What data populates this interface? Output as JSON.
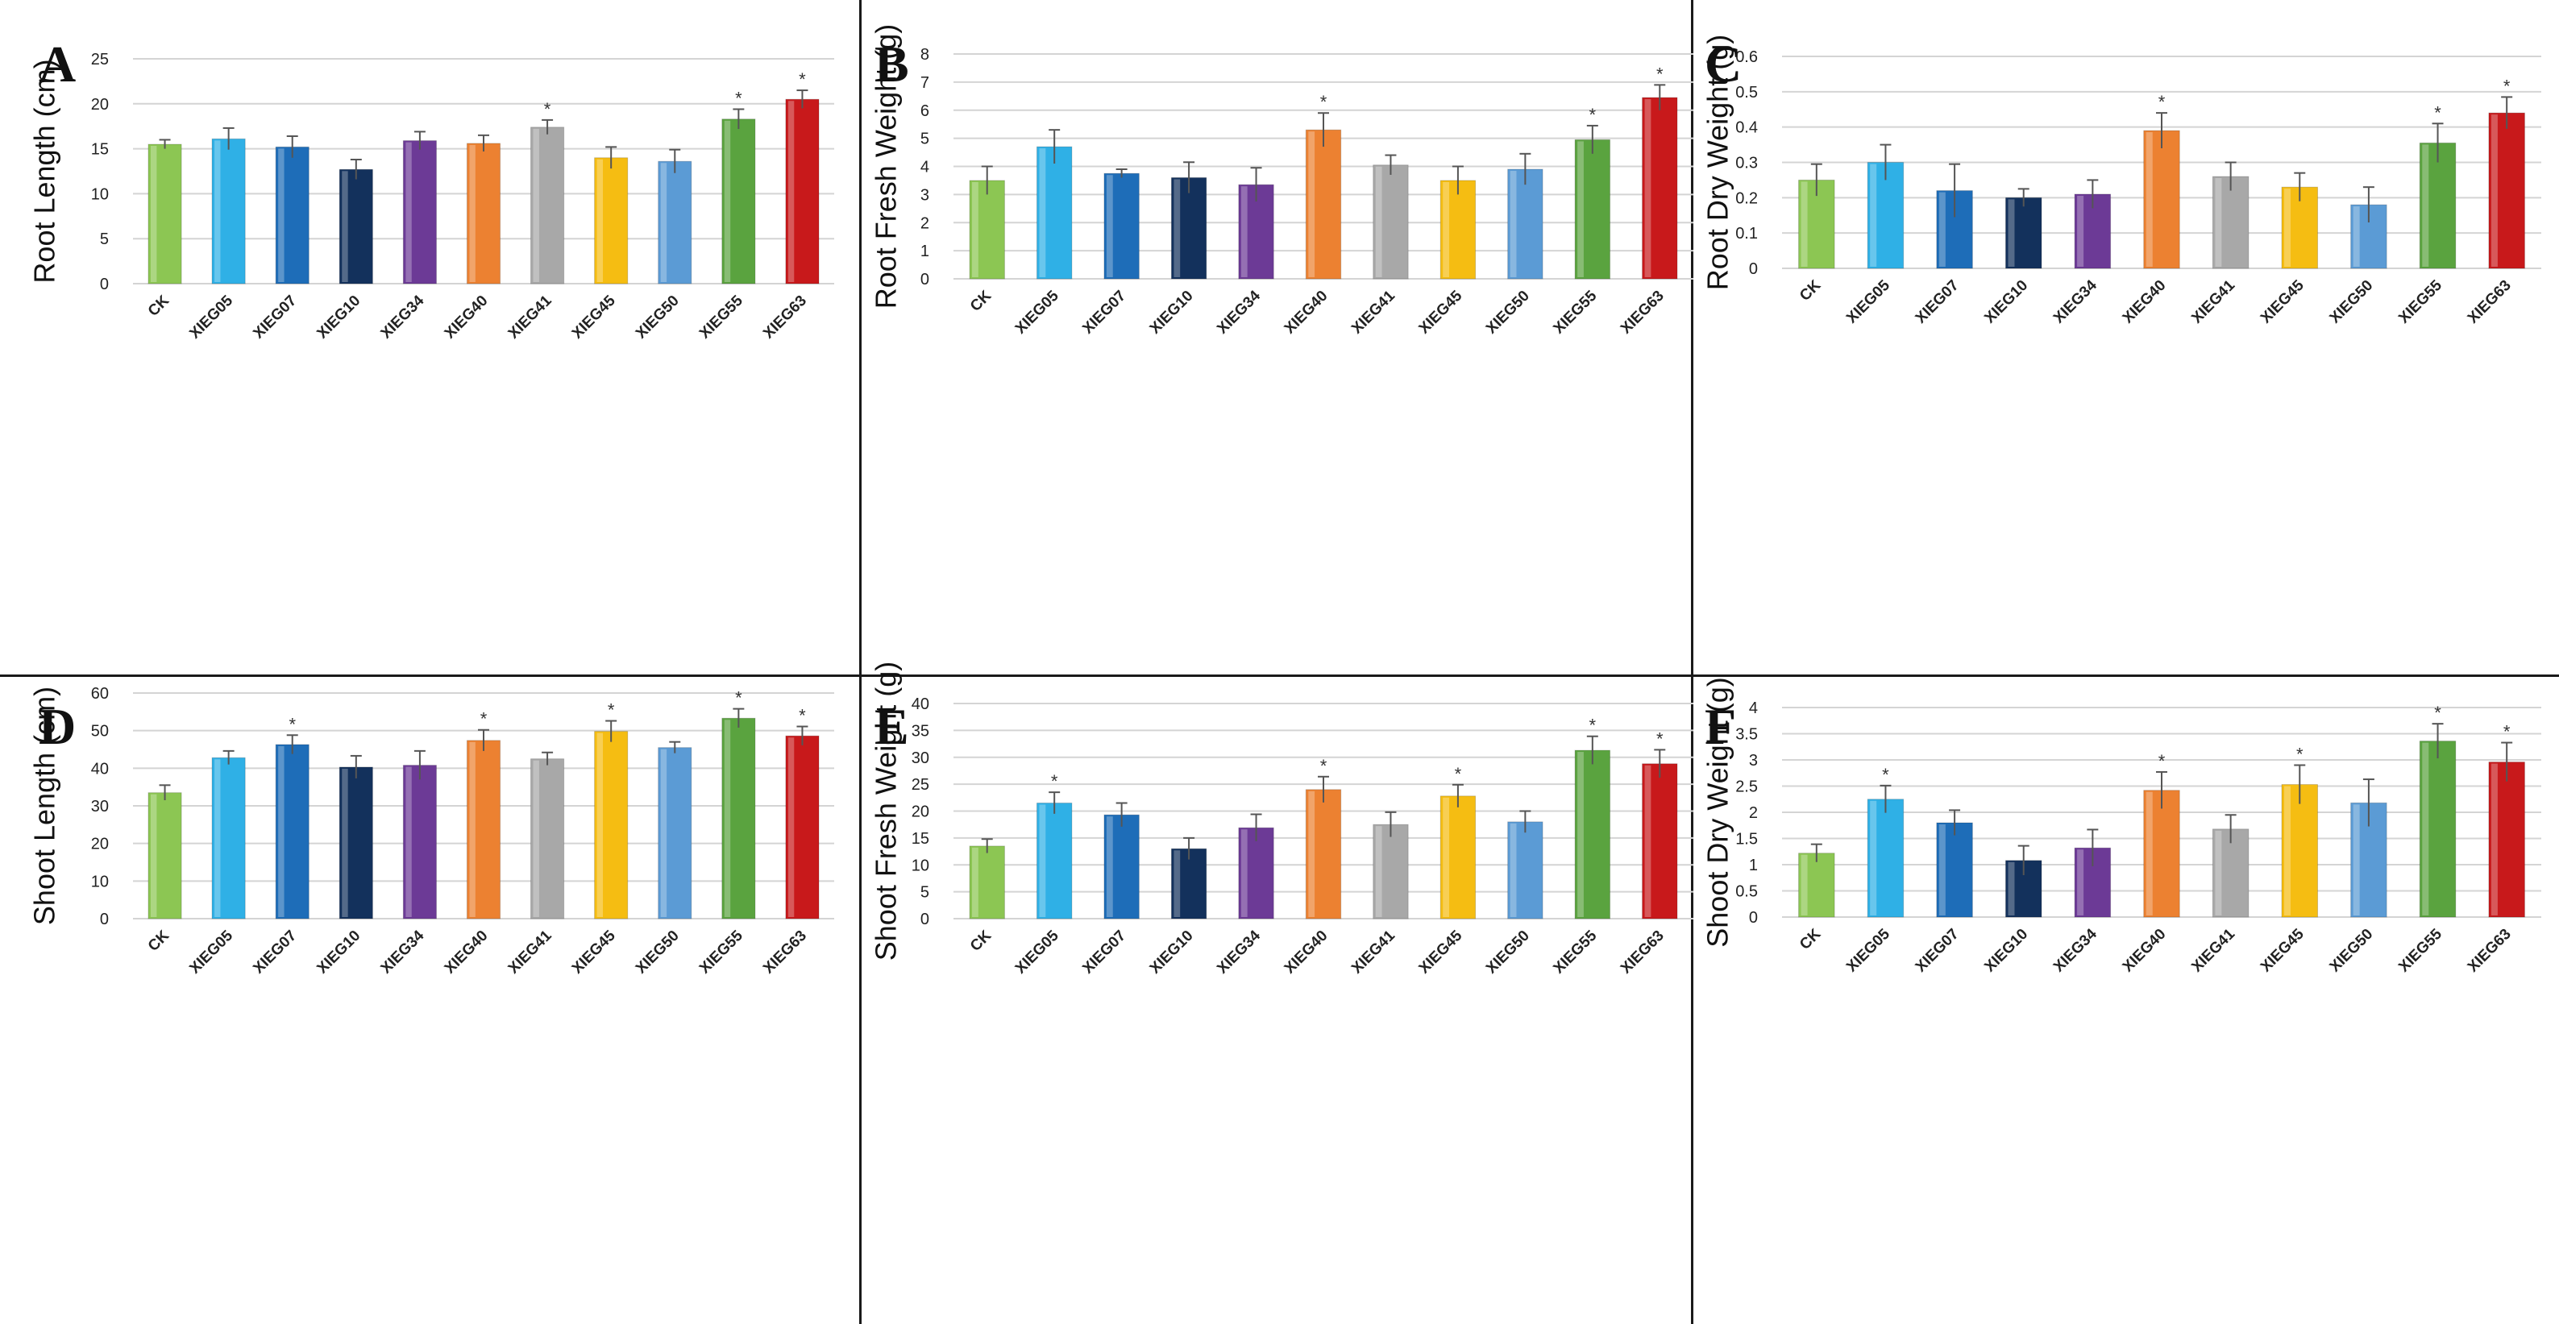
{
  "figure": {
    "colors": {
      "CK": "#8cc653",
      "XIEG05": "#2fb0e6",
      "XIEG07": "#1e6db8",
      "XIEG10": "#13315c",
      "XIEG34": "#6c3a96",
      "XIEG40": "#ec8131",
      "XIEG41": "#a8a8a8",
      "XIEG45": "#f5bd12",
      "XIEG50": "#5b9bd5",
      "XIEG55": "#5aa33f",
      "XIEG63": "#c8191b",
      "grid": "#d4d4d4",
      "axis_text": "#222222",
      "error_bar": "#555555"
    }
  },
  "chart_data": [
    {
      "panel": "A",
      "type": "bar",
      "title": "",
      "xlabel": "",
      "ylabel": "Root Length (cm)",
      "categories": [
        "CK",
        "XIEG05",
        "XIEG07",
        "XIEG10",
        "XIEG34",
        "XIEG40",
        "XIEG41",
        "XIEG45",
        "XIEG50",
        "XIEG55",
        "XIEG63"
      ],
      "values": [
        15.5,
        16.1,
        15.2,
        12.7,
        15.9,
        15.6,
        17.4,
        14.0,
        13.6,
        18.3,
        20.5
      ],
      "errors": [
        0.5,
        1.2,
        1.2,
        1.1,
        1.0,
        0.9,
        0.8,
        1.2,
        1.3,
        1.1,
        1.0
      ],
      "significant": [
        false,
        false,
        false,
        false,
        false,
        false,
        true,
        false,
        false,
        true,
        true
      ],
      "significance_marker": "*",
      "ylim": [
        0,
        25
      ],
      "yticks": [
        "0",
        "5",
        "10",
        "15",
        "20",
        "25"
      ],
      "grid": true
    },
    {
      "panel": "B",
      "type": "bar",
      "title": "",
      "xlabel": "",
      "ylabel": "Root Fresh Weight (g)",
      "categories": [
        "CK",
        "XIEG05",
        "XIEG07",
        "XIEG10",
        "XIEG34",
        "XIEG40",
        "XIEG41",
        "XIEG45",
        "XIEG50",
        "XIEG55",
        "XIEG63"
      ],
      "values": [
        3.5,
        4.7,
        3.75,
        3.6,
        3.35,
        5.3,
        4.05,
        3.5,
        3.9,
        4.95,
        6.45
      ],
      "errors": [
        0.5,
        0.6,
        0.15,
        0.55,
        0.6,
        0.6,
        0.35,
        0.5,
        0.55,
        0.5,
        0.45
      ],
      "significant": [
        false,
        false,
        false,
        false,
        false,
        true,
        false,
        false,
        false,
        true,
        true
      ],
      "significance_marker": "*",
      "ylim": [
        0,
        8
      ],
      "yticks": [
        "0",
        "1",
        "2",
        "3",
        "4",
        "5",
        "6",
        "7",
        "8"
      ],
      "grid": true
    },
    {
      "panel": "C",
      "type": "bar",
      "title": "",
      "xlabel": "",
      "ylabel": "Root Dry Weight (g)",
      "categories": [
        "CK",
        "XIEG05",
        "XIEG07",
        "XIEG10",
        "XIEG34",
        "XIEG40",
        "XIEG41",
        "XIEG45",
        "XIEG50",
        "XIEG55",
        "XIEG63"
      ],
      "values": [
        0.25,
        0.3,
        0.22,
        0.2,
        0.21,
        0.39,
        0.26,
        0.23,
        0.18,
        0.355,
        0.44
      ],
      "errors": [
        0.045,
        0.05,
        0.075,
        0.025,
        0.04,
        0.05,
        0.04,
        0.04,
        0.05,
        0.055,
        0.045
      ],
      "significant": [
        false,
        false,
        false,
        false,
        false,
        true,
        false,
        false,
        false,
        true,
        true
      ],
      "significance_marker": "*",
      "ylim": [
        0,
        0.6
      ],
      "yticks": [
        "0",
        "0.1",
        "0.2",
        "0.3",
        "0.4",
        "0.5",
        "0.6"
      ],
      "grid": true
    },
    {
      "panel": "D",
      "type": "bar",
      "title": "",
      "xlabel": "",
      "ylabel": "Shoot Length (cm)",
      "categories": [
        "CK",
        "XIEG05",
        "XIEG07",
        "XIEG10",
        "XIEG34",
        "XIEG40",
        "XIEG41",
        "XIEG45",
        "XIEG50",
        "XIEG55",
        "XIEG63"
      ],
      "values": [
        33.5,
        42.8,
        46.3,
        40.3,
        40.8,
        47.4,
        42.5,
        49.8,
        45.5,
        53.3,
        48.6
      ],
      "errors": [
        2.0,
        1.8,
        2.5,
        3.0,
        3.8,
        2.8,
        1.7,
        2.8,
        1.5,
        2.5,
        2.5
      ],
      "significant": [
        false,
        false,
        true,
        false,
        false,
        true,
        false,
        true,
        false,
        true,
        true
      ],
      "significance_marker": "*",
      "ylim": [
        0,
        60
      ],
      "yticks": [
        "0",
        "10",
        "20",
        "30",
        "40",
        "50",
        "60"
      ],
      "grid": true
    },
    {
      "panel": "E",
      "type": "bar",
      "title": "",
      "xlabel": "",
      "ylabel": "Shoot Fresh Weight (g)",
      "categories": [
        "CK",
        "XIEG05",
        "XIEG07",
        "XIEG10",
        "XIEG34",
        "XIEG40",
        "XIEG41",
        "XIEG45",
        "XIEG50",
        "XIEG55",
        "XIEG63"
      ],
      "values": [
        13.5,
        21.5,
        19.3,
        13.0,
        16.9,
        24.0,
        17.5,
        22.8,
        18.0,
        31.3,
        28.8
      ],
      "errors": [
        1.3,
        2.0,
        2.2,
        2.0,
        2.5,
        2.4,
        2.3,
        2.1,
        2.0,
        2.6,
        2.6
      ],
      "significant": [
        false,
        true,
        false,
        false,
        false,
        true,
        false,
        true,
        false,
        true,
        true
      ],
      "significance_marker": "*",
      "ylim": [
        0,
        40
      ],
      "yticks": [
        "0",
        "5",
        "10",
        "15",
        "20",
        "25",
        "30",
        "35",
        "40"
      ],
      "grid": true
    },
    {
      "panel": "F",
      "type": "bar",
      "title": "",
      "xlabel": "",
      "ylabel": "Shoot Dry Weight (g)",
      "categories": [
        "CK",
        "XIEG05",
        "XIEG07",
        "XIEG10",
        "XIEG34",
        "XIEG40",
        "XIEG41",
        "XIEG45",
        "XIEG50",
        "XIEG55",
        "XIEG63"
      ],
      "values": [
        1.22,
        2.25,
        1.8,
        1.08,
        1.32,
        2.42,
        1.68,
        2.53,
        2.18,
        3.36,
        2.96
      ],
      "errors": [
        0.17,
        0.26,
        0.24,
        0.28,
        0.35,
        0.35,
        0.27,
        0.37,
        0.45,
        0.33,
        0.37
      ],
      "significant": [
        false,
        true,
        false,
        false,
        false,
        true,
        false,
        true,
        false,
        true,
        true
      ],
      "significance_marker": "*",
      "ylim": [
        0,
        4
      ],
      "yticks": [
        "0",
        "0.5",
        "1",
        "1.5",
        "2",
        "2.5",
        "3",
        "3.5",
        "4"
      ],
      "grid": true
    }
  ]
}
